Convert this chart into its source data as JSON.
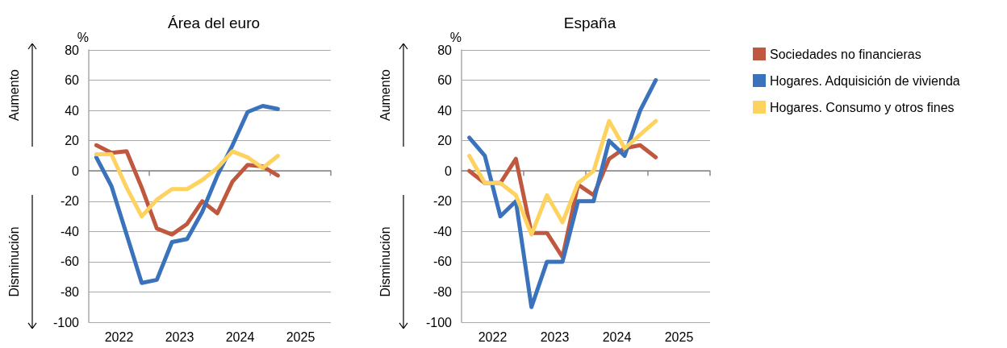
{
  "chart_data": [
    {
      "type": "line",
      "title": "Área del euro",
      "ylabel": "%",
      "annotations": [
        "Aumento",
        "Disminución"
      ],
      "x": [
        2022.125,
        2022.375,
        2022.625,
        2022.875,
        2023.125,
        2023.375,
        2023.625,
        2023.875,
        2024.125,
        2024.375,
        2024.625,
        2024.875,
        2025.125
      ],
      "series": [
        {
          "color": "#c0583f",
          "values": [
            17,
            12,
            13,
            -11,
            -38,
            -42,
            -35,
            -20,
            -28,
            -7,
            4,
            3,
            -3
          ]
        },
        {
          "color": "#3a72bb",
          "values": [
            9,
            -10,
            -42,
            -74,
            -72,
            -47,
            -45,
            -27,
            -3,
            17,
            39,
            43,
            41
          ]
        },
        {
          "color": "#fdd25e",
          "values": [
            11,
            11,
            -11,
            -30,
            -19,
            -12,
            -12,
            -6,
            2,
            13,
            9,
            2,
            10
          ]
        }
      ],
      "xlim": [
        2022,
        2026
      ],
      "xticks": [
        {
          "value": 2022.5,
          "label": "2022"
        },
        {
          "value": 2023,
          "label": null
        },
        {
          "value": 2023.5,
          "label": "2023"
        },
        {
          "value": 2024,
          "label": null
        },
        {
          "value": 2024.5,
          "label": "2024"
        },
        {
          "value": 2025,
          "label": null
        },
        {
          "value": 2025.5,
          "label": "2025"
        },
        {
          "value": 2026,
          "label": null
        }
      ],
      "ylim": [
        -100,
        80
      ],
      "yticks": [
        -100,
        -80,
        -60,
        -40,
        -20,
        0,
        20,
        40,
        60,
        80
      ],
      "grid": "y",
      "legend": false,
      "marker": "none",
      "line_style": "solid"
    },
    {
      "type": "line",
      "title": "España",
      "ylabel": "%",
      "annotations": [
        "Aumento",
        "Disminución"
      ],
      "x": [
        2022.125,
        2022.375,
        2022.625,
        2022.875,
        2023.125,
        2023.375,
        2023.625,
        2023.875,
        2024.125,
        2024.375,
        2024.625,
        2024.875,
        2025.125
      ],
      "series": [
        {
          "name": "Sociedades no financieras",
          "color": "#c0583f",
          "values": [
            0,
            -8,
            -8,
            8,
            -41,
            -41,
            -57,
            -9,
            -16,
            8,
            15,
            17,
            9
          ]
        },
        {
          "name": "Hogares. Adquisición de vivienda",
          "color": "#3a72bb",
          "values": [
            22,
            10,
            -30,
            -20,
            -90,
            -60,
            -60,
            -20,
            -20,
            20,
            10,
            40,
            60
          ]
        },
        {
          "name": "Hogares. Consumo y otros fines",
          "color": "#fdd25e",
          "values": [
            10,
            -8,
            -8,
            -16,
            -42,
            -16,
            -34,
            -8,
            0,
            33,
            15,
            24,
            33
          ]
        }
      ],
      "xlim": [
        2022,
        2026
      ],
      "xticks": [
        {
          "value": 2022.5,
          "label": "2022"
        },
        {
          "value": 2023,
          "label": null
        },
        {
          "value": 2023.5,
          "label": "2023"
        },
        {
          "value": 2024,
          "label": null
        },
        {
          "value": 2024.5,
          "label": "2024"
        },
        {
          "value": 2025,
          "label": null
        },
        {
          "value": 2025.5,
          "label": "2025"
        },
        {
          "value": 2026,
          "label": null
        }
      ],
      "ylim": [
        -100,
        80
      ],
      "yticks": [
        -100,
        -80,
        -60,
        -40,
        -20,
        0,
        20,
        40,
        60,
        80
      ],
      "grid": "y",
      "legend": "right",
      "marker": "none",
      "line_style": "solid"
    }
  ]
}
